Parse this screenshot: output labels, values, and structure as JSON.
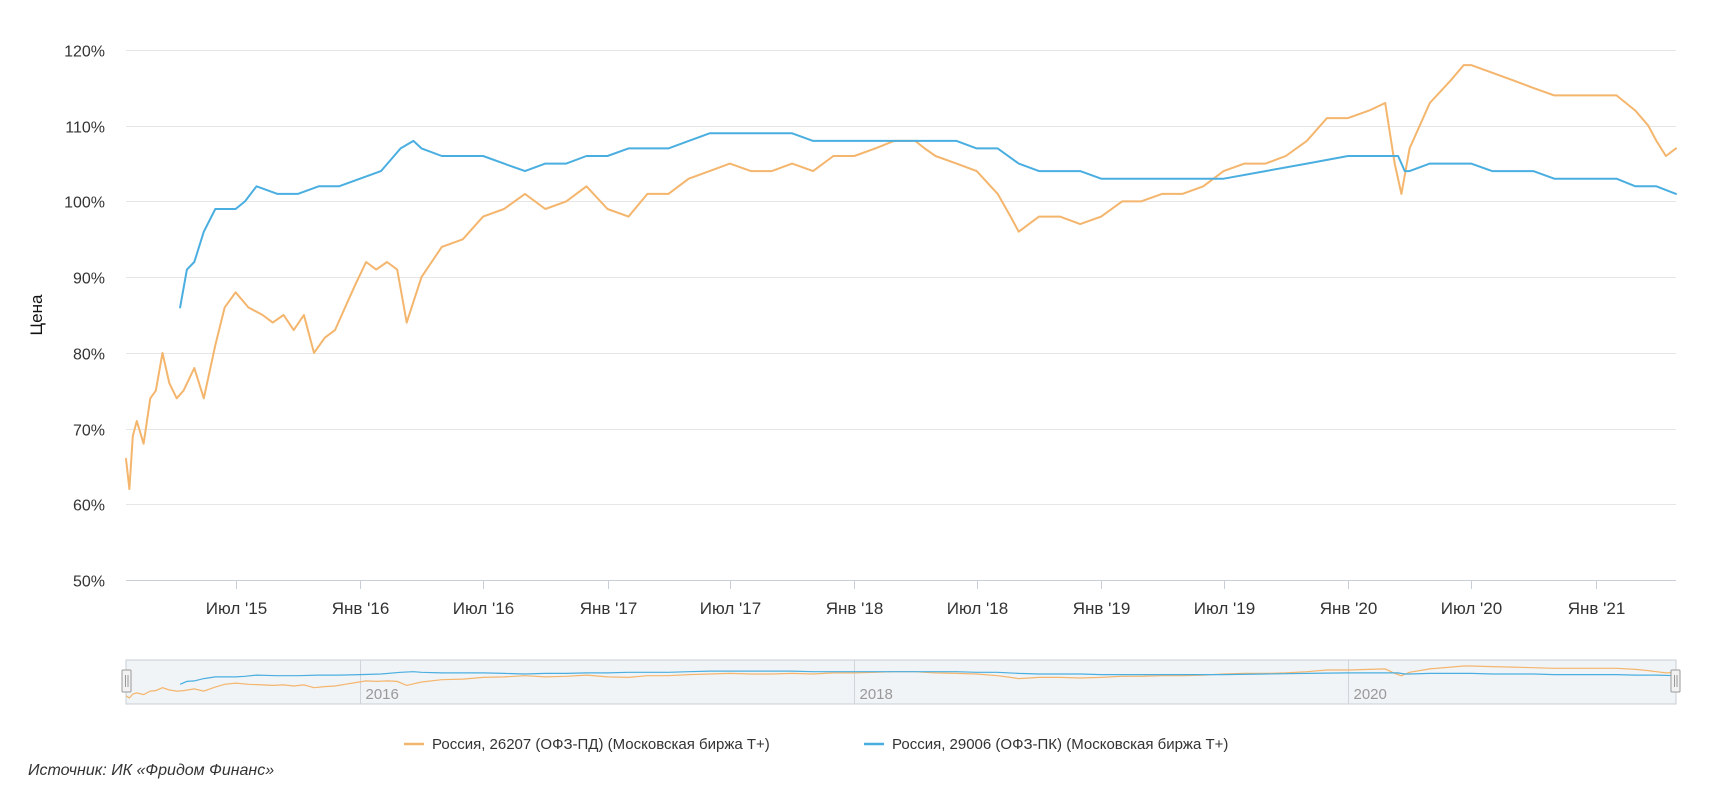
{
  "chart_data": {
    "type": "line",
    "ylabel": "Цена",
    "ylim": [
      50,
      120
    ],
    "yticks": [
      50,
      60,
      70,
      80,
      90,
      100,
      110,
      120
    ],
    "ytick_labels": [
      "50%",
      "60%",
      "70%",
      "80%",
      "90%",
      "100%",
      "110%",
      "120%"
    ],
    "x_range": [
      "2015-01-20",
      "2021-04-30"
    ],
    "xticks": [
      {
        "date": "2015-07-01",
        "label": "Июл '15"
      },
      {
        "date": "2016-01-01",
        "label": "Янв '16"
      },
      {
        "date": "2016-07-01",
        "label": "Июл '16"
      },
      {
        "date": "2017-01-01",
        "label": "Янв '17"
      },
      {
        "date": "2017-07-01",
        "label": "Июл '17"
      },
      {
        "date": "2018-01-01",
        "label": "Янв '18"
      },
      {
        "date": "2018-07-01",
        "label": "Июл '18"
      },
      {
        "date": "2019-01-01",
        "label": "Янв '19"
      },
      {
        "date": "2019-07-01",
        "label": "Июл '19"
      },
      {
        "date": "2020-01-01",
        "label": "Янв '20"
      },
      {
        "date": "2020-07-01",
        "label": "Июл '20"
      },
      {
        "date": "2021-01-01",
        "label": "Янв '21"
      }
    ],
    "grid": true,
    "legend_position": "bottom-center",
    "navigator": {
      "labels": [
        {
          "date": "2016-01-01",
          "label": "2016"
        },
        {
          "date": "2018-01-01",
          "label": "2018"
        },
        {
          "date": "2020-01-01",
          "label": "2020"
        }
      ]
    },
    "series": [
      {
        "name": "Россия, 26207 (ОФЗ-ПД) (Московская биржа T+)",
        "color": "#f4b56d",
        "x": [
          "2015-01-20",
          "2015-01-25",
          "2015-01-30",
          "2015-02-05",
          "2015-02-15",
          "2015-02-25",
          "2015-03-05",
          "2015-03-15",
          "2015-03-25",
          "2015-04-05",
          "2015-04-15",
          "2015-05-01",
          "2015-05-15",
          "2015-06-01",
          "2015-06-15",
          "2015-07-01",
          "2015-07-20",
          "2015-08-10",
          "2015-08-25",
          "2015-09-10",
          "2015-09-25",
          "2015-10-10",
          "2015-10-25",
          "2015-11-10",
          "2015-11-25",
          "2015-12-10",
          "2015-12-25",
          "2016-01-10",
          "2016-01-25",
          "2016-02-10",
          "2016-02-25",
          "2016-03-10",
          "2016-04-01",
          "2016-05-01",
          "2016-06-01",
          "2016-07-01",
          "2016-08-01",
          "2016-09-01",
          "2016-10-01",
          "2016-11-01",
          "2016-12-01",
          "2017-01-01",
          "2017-02-01",
          "2017-03-01",
          "2017-04-01",
          "2017-05-01",
          "2017-06-01",
          "2017-07-01",
          "2017-08-01",
          "2017-09-01",
          "2017-10-01",
          "2017-11-01",
          "2017-12-01",
          "2018-01-01",
          "2018-02-01",
          "2018-03-01",
          "2018-04-01",
          "2018-04-15",
          "2018-05-01",
          "2018-06-01",
          "2018-07-01",
          "2018-08-01",
          "2018-08-20",
          "2018-09-01",
          "2018-10-01",
          "2018-11-01",
          "2018-12-01",
          "2019-01-01",
          "2019-02-01",
          "2019-03-01",
          "2019-04-01",
          "2019-05-01",
          "2019-06-01",
          "2019-07-01",
          "2019-08-01",
          "2019-09-01",
          "2019-10-01",
          "2019-11-01",
          "2019-12-01",
          "2020-01-01",
          "2020-02-01",
          "2020-02-25",
          "2020-03-10",
          "2020-03-20",
          "2020-04-01",
          "2020-05-01",
          "2020-06-01",
          "2020-06-20",
          "2020-07-01",
          "2020-08-01",
          "2020-09-01",
          "2020-10-01",
          "2020-11-01",
          "2020-12-01",
          "2021-01-01",
          "2021-02-01",
          "2021-03-01",
          "2021-03-20",
          "2021-04-01",
          "2021-04-15",
          "2021-04-30"
        ],
        "y": [
          66,
          62,
          69,
          71,
          68,
          74,
          75,
          80,
          76,
          74,
          75,
          78,
          74,
          81,
          86,
          88,
          86,
          85,
          84,
          85,
          83,
          85,
          80,
          82,
          83,
          86,
          89,
          92,
          91,
          92,
          91,
          84,
          90,
          94,
          95,
          98,
          99,
          101,
          99,
          100,
          102,
          99,
          98,
          101,
          101,
          103,
          104,
          105,
          104,
          104,
          105,
          104,
          106,
          106,
          107,
          108,
          108,
          107,
          106,
          105,
          104,
          101,
          98,
          96,
          98,
          98,
          97,
          98,
          100,
          100,
          101,
          101,
          102,
          104,
          105,
          105,
          106,
          108,
          111,
          111,
          112,
          113,
          105,
          101,
          107,
          113,
          116,
          118,
          118,
          117,
          116,
          115,
          114,
          114,
          114,
          114,
          112,
          110,
          108,
          106,
          107
        ]
      },
      {
        "name": "Россия, 29006 (ОФЗ-ПК) (Московская биржа T+)",
        "color": "#4aaee0",
        "x": [
          "2015-04-10",
          "2015-04-20",
          "2015-05-01",
          "2015-05-15",
          "2015-06-01",
          "2015-06-15",
          "2015-07-01",
          "2015-07-15",
          "2015-08-01",
          "2015-09-01",
          "2015-10-01",
          "2015-11-01",
          "2015-12-01",
          "2016-01-01",
          "2016-02-01",
          "2016-03-01",
          "2016-03-20",
          "2016-04-01",
          "2016-05-01",
          "2016-06-01",
          "2016-07-01",
          "2016-08-01",
          "2016-09-01",
          "2016-10-01",
          "2016-11-01",
          "2016-12-01",
          "2017-01-01",
          "2017-02-01",
          "2017-03-01",
          "2017-04-01",
          "2017-05-01",
          "2017-06-01",
          "2017-07-01",
          "2017-08-01",
          "2017-09-01",
          "2017-10-01",
          "2017-11-01",
          "2017-12-01",
          "2018-01-01",
          "2018-02-01",
          "2018-03-01",
          "2018-04-01",
          "2018-05-01",
          "2018-06-01",
          "2018-07-01",
          "2018-08-01",
          "2018-09-01",
          "2018-10-01",
          "2018-11-01",
          "2018-12-01",
          "2019-01-01",
          "2019-03-01",
          "2019-05-01",
          "2019-07-01",
          "2019-09-01",
          "2019-11-01",
          "2020-01-01",
          "2020-02-01",
          "2020-03-01",
          "2020-03-15",
          "2020-03-25",
          "2020-04-01",
          "2020-05-01",
          "2020-06-01",
          "2020-07-01",
          "2020-08-01",
          "2020-09-01",
          "2020-10-01",
          "2020-11-01",
          "2020-12-01",
          "2021-01-01",
          "2021-02-01",
          "2021-03-01",
          "2021-04-01",
          "2021-04-30"
        ],
        "y": [
          86,
          91,
          92,
          96,
          99,
          99,
          99,
          100,
          102,
          101,
          101,
          102,
          102,
          103,
          104,
          107,
          108,
          107,
          106,
          106,
          106,
          105,
          104,
          105,
          105,
          106,
          106,
          107,
          107,
          107,
          108,
          109,
          109,
          109,
          109,
          109,
          108,
          108,
          108,
          108,
          108,
          108,
          108,
          108,
          107,
          107,
          105,
          104,
          104,
          104,
          103,
          103,
          103,
          103,
          104,
          105,
          106,
          106,
          106,
          106,
          104,
          104,
          105,
          105,
          105,
          104,
          104,
          104,
          103,
          103,
          103,
          103,
          102,
          102,
          101
        ]
      }
    ]
  },
  "source_text": "Источник: ИК «Фридом Финанс»"
}
